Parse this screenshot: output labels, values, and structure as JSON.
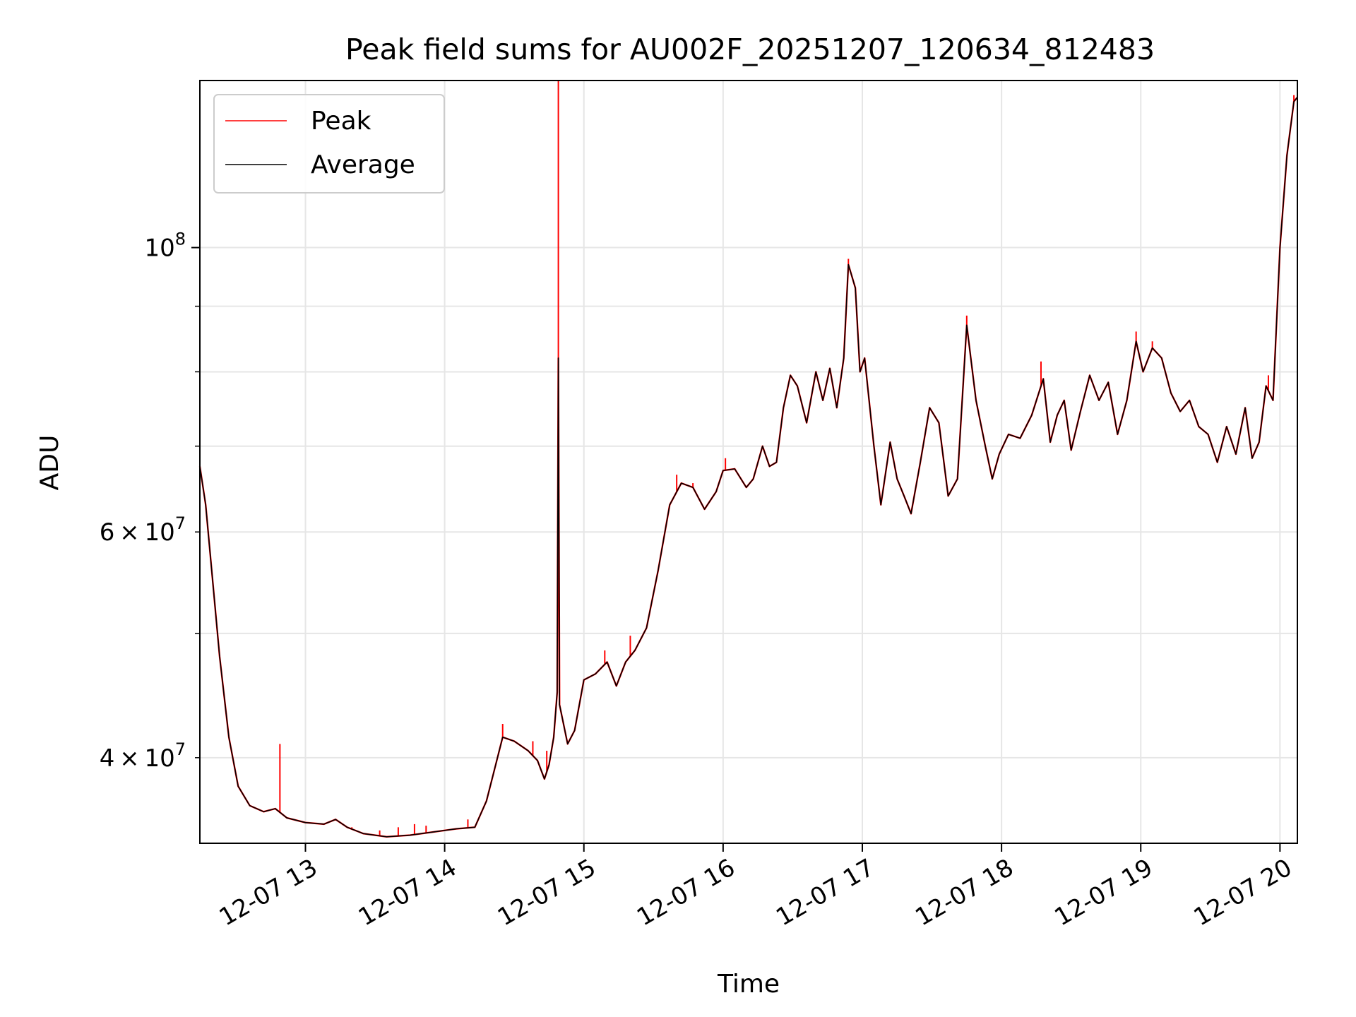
{
  "chart_data": {
    "type": "line",
    "title": "Peak field sums for AU002F_20251207_120634_812483",
    "xlabel": "Time",
    "ylabel": "ADU",
    "yscale": "log",
    "xlim": [
      "2025-12-07T12:14:30",
      "2025-12-07T20:07:30"
    ],
    "ylim": [
      34300000,
      135000000
    ],
    "grid": true,
    "legend": {
      "placement": "upper-left",
      "entries": [
        "Peak",
        "Average"
      ]
    },
    "x_ticks": [
      {
        "value": "2025-12-07T13:00",
        "label": "12-07 13"
      },
      {
        "value": "2025-12-07T14:00",
        "label": "12-07 14"
      },
      {
        "value": "2025-12-07T15:00",
        "label": "12-07 15"
      },
      {
        "value": "2025-12-07T16:00",
        "label": "12-07 16"
      },
      {
        "value": "2025-12-07T17:00",
        "label": "12-07 17"
      },
      {
        "value": "2025-12-07T18:00",
        "label": "12-07 18"
      },
      {
        "value": "2025-12-07T19:00",
        "label": "12-07 19"
      },
      {
        "value": "2025-12-07T20:00",
        "label": "12-07 20"
      }
    ],
    "y_major_ticks": [
      {
        "value": 100000000,
        "base": "10",
        "exp": "8"
      }
    ],
    "y_minor_ticks": [
      {
        "value": 40000000,
        "mant": "4",
        "base": "10",
        "exp": "7"
      },
      {
        "value": 60000000,
        "mant": "6",
        "base": "10",
        "exp": "7"
      }
    ],
    "y_unlabeled_minor_ticks": [
      50000000,
      70000000,
      80000000,
      90000000
    ],
    "series": [
      {
        "name": "Average",
        "color": "#000000",
        "points": [
          [
            "2025-12-07T12:14:30",
            67500000
          ],
          [
            "2025-12-07T12:17",
            63000000
          ],
          [
            "2025-12-07T12:20",
            55000000
          ],
          [
            "2025-12-07T12:23",
            48000000
          ],
          [
            "2025-12-07T12:27",
            41500000
          ],
          [
            "2025-12-07T12:31",
            38000000
          ],
          [
            "2025-12-07T12:36",
            36700000
          ],
          [
            "2025-12-07T12:42",
            36300000
          ],
          [
            "2025-12-07T12:47",
            36500000
          ],
          [
            "2025-12-07T12:52",
            35900000
          ],
          [
            "2025-12-07T13:00",
            35600000
          ],
          [
            "2025-12-07T13:08",
            35500000
          ],
          [
            "2025-12-07T13:13",
            35800000
          ],
          [
            "2025-12-07T13:18",
            35300000
          ],
          [
            "2025-12-07T13:25",
            34900000
          ],
          [
            "2025-12-07T13:35",
            34700000
          ],
          [
            "2025-12-07T13:45",
            34800000
          ],
          [
            "2025-12-07T13:55",
            35000000
          ],
          [
            "2025-12-07T14:05",
            35200000
          ],
          [
            "2025-12-07T14:13",
            35300000
          ],
          [
            "2025-12-07T14:18",
            37000000
          ],
          [
            "2025-12-07T14:22",
            39500000
          ],
          [
            "2025-12-07T14:25",
            41500000
          ],
          [
            "2025-12-07T14:30",
            41200000
          ],
          [
            "2025-12-07T14:36",
            40500000
          ],
          [
            "2025-12-07T14:40",
            39800000
          ],
          [
            "2025-12-07T14:43",
            38500000
          ],
          [
            "2025-12-07T14:45",
            39500000
          ],
          [
            "2025-12-07T14:47",
            41500000
          ],
          [
            "2025-12-07T14:48:30",
            45000000
          ],
          [
            "2025-12-07T14:49",
            82000000
          ],
          [
            "2025-12-07T14:49:30",
            44000000
          ],
          [
            "2025-12-07T14:53",
            41000000
          ],
          [
            "2025-12-07T14:56",
            42000000
          ],
          [
            "2025-12-07T15:00",
            46000000
          ],
          [
            "2025-12-07T15:05",
            46500000
          ],
          [
            "2025-12-07T15:10",
            47500000
          ],
          [
            "2025-12-07T15:14",
            45500000
          ],
          [
            "2025-12-07T15:18",
            47500000
          ],
          [
            "2025-12-07T15:22",
            48500000
          ],
          [
            "2025-12-07T15:27",
            50500000
          ],
          [
            "2025-12-07T15:32",
            56000000
          ],
          [
            "2025-12-07T15:37",
            63000000
          ],
          [
            "2025-12-07T15:42",
            65500000
          ],
          [
            "2025-12-07T15:47",
            65000000
          ],
          [
            "2025-12-07T15:52",
            62500000
          ],
          [
            "2025-12-07T15:57",
            64500000
          ],
          [
            "2025-12-07T16:00",
            67000000
          ],
          [
            "2025-12-07T16:05",
            67200000
          ],
          [
            "2025-12-07T16:10",
            65000000
          ],
          [
            "2025-12-07T16:13",
            66000000
          ],
          [
            "2025-12-07T16:17",
            70000000
          ],
          [
            "2025-12-07T16:20",
            67500000
          ],
          [
            "2025-12-07T16:23",
            68000000
          ],
          [
            "2025-12-07T16:26",
            75000000
          ],
          [
            "2025-12-07T16:29",
            79500000
          ],
          [
            "2025-12-07T16:32",
            78000000
          ],
          [
            "2025-12-07T16:36",
            73000000
          ],
          [
            "2025-12-07T16:40",
            80000000
          ],
          [
            "2025-12-07T16:43",
            76000000
          ],
          [
            "2025-12-07T16:46",
            80500000
          ],
          [
            "2025-12-07T16:49",
            75000000
          ],
          [
            "2025-12-07T16:52",
            82000000
          ],
          [
            "2025-12-07T16:54",
            97000000
          ],
          [
            "2025-12-07T16:57",
            93000000
          ],
          [
            "2025-12-07T16:59",
            80000000
          ],
          [
            "2025-12-07T17:01",
            82000000
          ],
          [
            "2025-12-07T17:05",
            70000000
          ],
          [
            "2025-12-07T17:08",
            63000000
          ],
          [
            "2025-12-07T17:12",
            70500000
          ],
          [
            "2025-12-07T17:15",
            66000000
          ],
          [
            "2025-12-07T17:18",
            64000000
          ],
          [
            "2025-12-07T17:21",
            62000000
          ],
          [
            "2025-12-07T17:25",
            68000000
          ],
          [
            "2025-12-07T17:29",
            75000000
          ],
          [
            "2025-12-07T17:33",
            73000000
          ],
          [
            "2025-12-07T17:37",
            64000000
          ],
          [
            "2025-12-07T17:41",
            66000000
          ],
          [
            "2025-12-07T17:45",
            87000000
          ],
          [
            "2025-12-07T17:49",
            76000000
          ],
          [
            "2025-12-07T17:53",
            70000000
          ],
          [
            "2025-12-07T17:56",
            66000000
          ],
          [
            "2025-12-07T17:59",
            69000000
          ],
          [
            "2025-12-07T18:03",
            71500000
          ],
          [
            "2025-12-07T18:08",
            71000000
          ],
          [
            "2025-12-07T18:13",
            74000000
          ],
          [
            "2025-12-07T18:18",
            79000000
          ],
          [
            "2025-12-07T18:21",
            70500000
          ],
          [
            "2025-12-07T18:24",
            74000000
          ],
          [
            "2025-12-07T18:27",
            76000000
          ],
          [
            "2025-12-07T18:30",
            69500000
          ],
          [
            "2025-12-07T18:34",
            74500000
          ],
          [
            "2025-12-07T18:38",
            79500000
          ],
          [
            "2025-12-07T18:42",
            76000000
          ],
          [
            "2025-12-07T18:46",
            78500000
          ],
          [
            "2025-12-07T18:50",
            71500000
          ],
          [
            "2025-12-07T18:54",
            76000000
          ],
          [
            "2025-12-07T18:58",
            84500000
          ],
          [
            "2025-12-07T19:01",
            80000000
          ],
          [
            "2025-12-07T19:05",
            83500000
          ],
          [
            "2025-12-07T19:09",
            82000000
          ],
          [
            "2025-12-07T19:13",
            77000000
          ],
          [
            "2025-12-07T19:17",
            74500000
          ],
          [
            "2025-12-07T19:21",
            76000000
          ],
          [
            "2025-12-07T19:25",
            72500000
          ],
          [
            "2025-12-07T19:29",
            71500000
          ],
          [
            "2025-12-07T19:33",
            68000000
          ],
          [
            "2025-12-07T19:37",
            72500000
          ],
          [
            "2025-12-07T19:41",
            69000000
          ],
          [
            "2025-12-07T19:45",
            75000000
          ],
          [
            "2025-12-07T19:48",
            68500000
          ],
          [
            "2025-12-07T19:51",
            70500000
          ],
          [
            "2025-12-07T19:54",
            78000000
          ],
          [
            "2025-12-07T19:57",
            76000000
          ],
          [
            "2025-12-07T20:00",
            100000000
          ],
          [
            "2025-12-07T20:03",
            118000000
          ],
          [
            "2025-12-07T20:06",
            130000000
          ],
          [
            "2025-12-07T20:07:30",
            131000000
          ]
        ]
      },
      {
        "name": "Peak",
        "color": "#ff0000",
        "spikes": [
          [
            "2025-12-07T12:14:30",
            68500000
          ],
          [
            "2025-12-07T12:49",
            41000000
          ],
          [
            "2025-12-07T13:20",
            35300000
          ],
          [
            "2025-12-07T13:32",
            35100000
          ],
          [
            "2025-12-07T13:40",
            35300000
          ],
          [
            "2025-12-07T13:47",
            35500000
          ],
          [
            "2025-12-07T13:52",
            35400000
          ],
          [
            "2025-12-07T14:10",
            35800000
          ],
          [
            "2025-12-07T14:25",
            42500000
          ],
          [
            "2025-12-07T14:38",
            41200000
          ],
          [
            "2025-12-07T14:44",
            40500000
          ],
          [
            "2025-12-07T14:49",
            135000000
          ],
          [
            "2025-12-07T15:09",
            48500000
          ],
          [
            "2025-12-07T15:20",
            49800000
          ],
          [
            "2025-12-07T15:40",
            66500000
          ],
          [
            "2025-12-07T15:47",
            65500000
          ],
          [
            "2025-12-07T16:01",
            68500000
          ],
          [
            "2025-12-07T16:54",
            98000000
          ],
          [
            "2025-12-07T17:45",
            88500000
          ],
          [
            "2025-12-07T18:17",
            81500000
          ],
          [
            "2025-12-07T18:58",
            86000000
          ],
          [
            "2025-12-07T19:05",
            84500000
          ],
          [
            "2025-12-07T19:55",
            79500000
          ],
          [
            "2025-12-07T20:06",
            131500000
          ]
        ]
      }
    ]
  }
}
